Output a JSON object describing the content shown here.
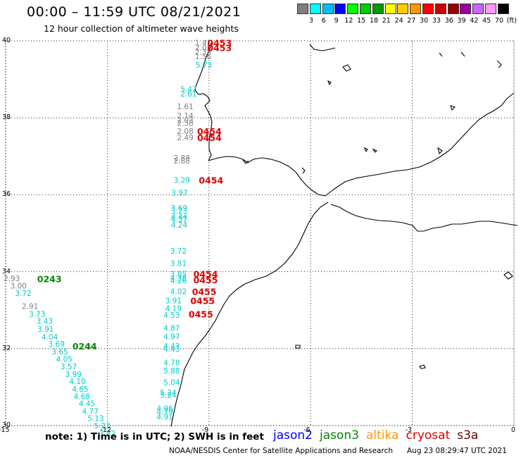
{
  "title": "00:00 – 11:59 UTC 08/21/2021",
  "subtitle": "12 hour collection of altimeter wave heights",
  "colorbar": {
    "colors": [
      "#7f7f7f",
      "#00ffff",
      "#00bfff",
      "#0000ff",
      "#00ff00",
      "#00cc00",
      "#009900",
      "#ffff00",
      "#ffcc00",
      "#ff9900",
      "#ff0000",
      "#cc0000",
      "#990000",
      "#990099",
      "#cc66ff",
      "#ff99ff",
      "#000000"
    ],
    "labels": [
      "3",
      "6",
      "9",
      "12",
      "15",
      "18",
      "21",
      "24",
      "27",
      "30",
      "33",
      "36",
      "39",
      "42",
      "45",
      "70",
      "(ft)"
    ]
  },
  "axes": {
    "lat_labels": [
      "40",
      "38",
      "36",
      "34",
      "32",
      "30"
    ],
    "lon_labels": [
      "-15",
      "-12",
      "-9",
      "-6",
      "-3",
      "0"
    ],
    "lat_range": [
      30,
      40
    ],
    "lon_range": [
      -15,
      0
    ]
  },
  "tracks": [
    {
      "color_name": "grey",
      "color": "#7f7f7f",
      "points": [
        {
          "lon": -9.17,
          "lat": 39.95,
          "swh": "1.41"
        },
        {
          "lon": -9.17,
          "lat": 39.83,
          "swh": "2.01"
        },
        {
          "lon": -9.17,
          "lat": 39.72,
          "swh": "2.38"
        },
        {
          "lon": -9.17,
          "lat": 39.6,
          "swh": "1.56"
        },
        {
          "lon": -9.7,
          "lat": 38.3,
          "swh": "1.61"
        },
        {
          "lon": -9.7,
          "lat": 38.06,
          "swh": "2.14"
        },
        {
          "lon": -9.7,
          "lat": 37.94,
          "swh": "2.03"
        },
        {
          "lon": -9.7,
          "lat": 37.87,
          "swh": "2.38"
        },
        {
          "lon": -9.7,
          "lat": 37.66,
          "swh": "2.08"
        },
        {
          "lon": -9.7,
          "lat": 37.49,
          "swh": "2.49"
        },
        {
          "lon": -9.8,
          "lat": 36.96,
          "swh": "2.88"
        },
        {
          "lon": -9.8,
          "lat": 36.89,
          "swh": "2.88"
        },
        {
          "lon": -14.82,
          "lat": 33.83,
          "swh": "2.93"
        },
        {
          "lon": -14.62,
          "lat": 33.64,
          "swh": "3.00"
        },
        {
          "lon": -14.28,
          "lat": 33.1,
          "swh": "2.91"
        }
      ]
    },
    {
      "color_name": "cyan",
      "color": "#00cccc",
      "points": [
        {
          "lon": -9.15,
          "lat": 39.38,
          "swh": "5.73"
        },
        {
          "lon": -9.6,
          "lat": 38.75,
          "swh": "5.47"
        },
        {
          "lon": -9.6,
          "lat": 38.63,
          "swh": "2.61"
        },
        {
          "lon": -9.8,
          "lat": 36.38,
          "swh": "3.29"
        },
        {
          "lon": -9.87,
          "lat": 36.05,
          "swh": "3.97"
        },
        {
          "lon": -9.88,
          "lat": 35.66,
          "swh": "3.69"
        },
        {
          "lon": -9.88,
          "lat": 35.59,
          "swh": "3.23"
        },
        {
          "lon": -9.88,
          "lat": 35.43,
          "swh": "4.44"
        },
        {
          "lon": -9.88,
          "lat": 35.37,
          "swh": "4.37"
        },
        {
          "lon": -9.88,
          "lat": 35.22,
          "swh": "4.24"
        },
        {
          "lon": -9.9,
          "lat": 34.54,
          "swh": "3.72"
        },
        {
          "lon": -9.9,
          "lat": 34.22,
          "swh": "3.81"
        },
        {
          "lon": -9.9,
          "lat": 33.95,
          "swh": "3.85"
        },
        {
          "lon": -9.9,
          "lat": 33.84,
          "swh": "4.38"
        },
        {
          "lon": -9.9,
          "lat": 33.77,
          "swh": "4.26"
        },
        {
          "lon": -9.9,
          "lat": 33.49,
          "swh": "4.02"
        },
        {
          "lon": -10.05,
          "lat": 33.25,
          "swh": "3.91"
        },
        {
          "lon": -10.05,
          "lat": 33.05,
          "swh": "4.19"
        },
        {
          "lon": -10.1,
          "lat": 32.88,
          "swh": "4.53"
        },
        {
          "lon": -10.1,
          "lat": 32.54,
          "swh": "4.87"
        },
        {
          "lon": -10.1,
          "lat": 32.32,
          "swh": "4.97"
        },
        {
          "lon": -10.1,
          "lat": 32.07,
          "swh": "4.43"
        },
        {
          "lon": -10.1,
          "lat": 32.0,
          "swh": "4.43"
        },
        {
          "lon": -10.1,
          "lat": 31.64,
          "swh": "4.78"
        },
        {
          "lon": -10.1,
          "lat": 31.43,
          "swh": "5.88"
        },
        {
          "lon": -10.1,
          "lat": 31.13,
          "swh": "5.04"
        },
        {
          "lon": -10.2,
          "lat": 30.86,
          "swh": "5.24"
        },
        {
          "lon": -10.2,
          "lat": 30.8,
          "swh": "5.24"
        },
        {
          "lon": -10.3,
          "lat": 30.45,
          "swh": "4.96"
        },
        {
          "lon": -10.3,
          "lat": 30.36,
          "swh": "4.79"
        },
        {
          "lon": -10.3,
          "lat": 30.23,
          "swh": "4.91"
        },
        {
          "lon": -14.48,
          "lat": 33.44,
          "swh": "3.72"
        },
        {
          "lon": -14.07,
          "lat": 32.9,
          "swh": "3.73"
        },
        {
          "lon": -13.85,
          "lat": 32.72,
          "swh": "3.43"
        },
        {
          "lon": -13.82,
          "lat": 32.51,
          "swh": "3.91"
        },
        {
          "lon": -13.7,
          "lat": 32.31,
          "swh": "4.04"
        },
        {
          "lon": -13.5,
          "lat": 32.12,
          "swh": "3.69"
        },
        {
          "lon": -13.4,
          "lat": 31.92,
          "swh": "3.65"
        },
        {
          "lon": -13.27,
          "lat": 31.73,
          "swh": "4.05"
        },
        {
          "lon": -13.14,
          "lat": 31.54,
          "swh": "3.57"
        },
        {
          "lon": -13.0,
          "lat": 31.34,
          "swh": "3.99"
        },
        {
          "lon": -12.88,
          "lat": 31.15,
          "swh": "4.10"
        },
        {
          "lon": -12.8,
          "lat": 30.95,
          "swh": "4.65"
        },
        {
          "lon": -12.75,
          "lat": 30.76,
          "swh": "4.68"
        },
        {
          "lon": -12.6,
          "lat": 30.58,
          "swh": "4.45"
        },
        {
          "lon": -12.5,
          "lat": 30.38,
          "swh": "4.77"
        },
        {
          "lon": -12.34,
          "lat": 30.19,
          "swh": "5.13"
        },
        {
          "lon": -12.15,
          "lat": 30.0,
          "swh": "5.23"
        },
        {
          "lon": -12.0,
          "lat": 29.8,
          "swh": "3.82"
        }
      ]
    }
  ],
  "time_labels": [
    {
      "color": "#dd0000",
      "lon": -9.05,
      "lat": 39.95,
      "text": "0453"
    },
    {
      "color": "#dd0000",
      "lon": -9.05,
      "lat": 39.83,
      "text": "0453"
    },
    {
      "color": "#dd0000",
      "lon": -9.35,
      "lat": 37.66,
      "text": "0454"
    },
    {
      "color": "#dd0000",
      "lon": -9.35,
      "lat": 37.49,
      "text": "0454"
    },
    {
      "color": "#dd0000",
      "lon": -9.3,
      "lat": 36.38,
      "text": "0454"
    },
    {
      "color": "#dd0000",
      "lon": -9.46,
      "lat": 33.95,
      "text": "0454"
    },
    {
      "color": "#dd0000",
      "lon": -9.46,
      "lat": 33.79,
      "text": "0455"
    },
    {
      "color": "#dd0000",
      "lon": -9.5,
      "lat": 33.49,
      "text": "0455"
    },
    {
      "color": "#dd0000",
      "lon": -9.55,
      "lat": 33.25,
      "text": "0455"
    },
    {
      "color": "#dd0000",
      "lon": -9.6,
      "lat": 32.9,
      "text": "0455"
    },
    {
      "color": "#008800",
      "lon": -14.07,
      "lat": 33.82,
      "text": "0243"
    },
    {
      "color": "#008800",
      "lon": -13.03,
      "lat": 32.07,
      "text": "0244"
    }
  ],
  "note": "note:  1) Time is in UTC;  2) SWH is in feet",
  "satellites": [
    {
      "name": "jason2",
      "color": "#0000ff"
    },
    {
      "name": "jason3",
      "color": "#008800"
    },
    {
      "name": "altika",
      "color": "#ff9900"
    },
    {
      "name": "cryosat",
      "color": "#dd0000"
    },
    {
      "name": "s3a",
      "color": "#660000"
    }
  ],
  "credit": "NOAA/NESDIS Center for Satellite Applications and Research",
  "timestamp": "Aug 23 08:29:47 UTC 2021"
}
